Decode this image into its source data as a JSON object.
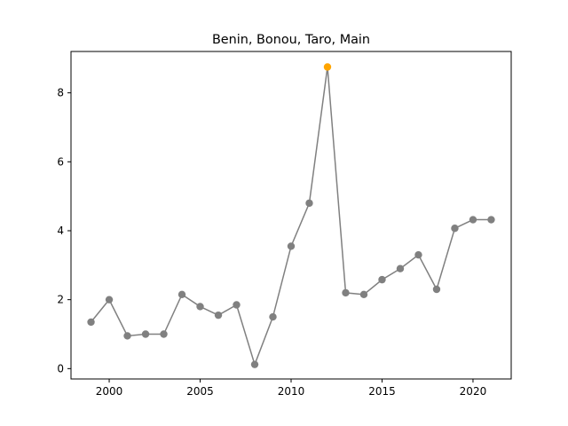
{
  "chart_data": {
    "type": "line",
    "title": "Benin, Bonou, Taro, Main",
    "xlabel": "",
    "ylabel": "",
    "xlim": [
      1997.9,
      2022.1
    ],
    "ylim": [
      -0.3,
      9.2
    ],
    "x_ticks": [
      2000,
      2005,
      2010,
      2015,
      2020
    ],
    "y_ticks": [
      0,
      2,
      4,
      6,
      8
    ],
    "grid": false,
    "line_color": "#808080",
    "highlight_color": "#ffa500",
    "series": [
      {
        "x": [
          1999,
          2000,
          2001,
          2002,
          2003,
          2004,
          2005,
          2006,
          2007,
          2008,
          2009,
          2010,
          2011,
          2012,
          2013,
          2014,
          2015,
          2016,
          2017,
          2018,
          2019,
          2020,
          2021
        ],
        "values": [
          1.35,
          2.0,
          0.95,
          1.0,
          1.0,
          2.15,
          1.8,
          1.55,
          1.85,
          0.12,
          1.5,
          3.55,
          4.8,
          8.75,
          2.2,
          2.15,
          2.58,
          2.9,
          3.3,
          2.3,
          4.07,
          4.32,
          4.32
        ]
      }
    ],
    "highlight_x": 2012
  }
}
